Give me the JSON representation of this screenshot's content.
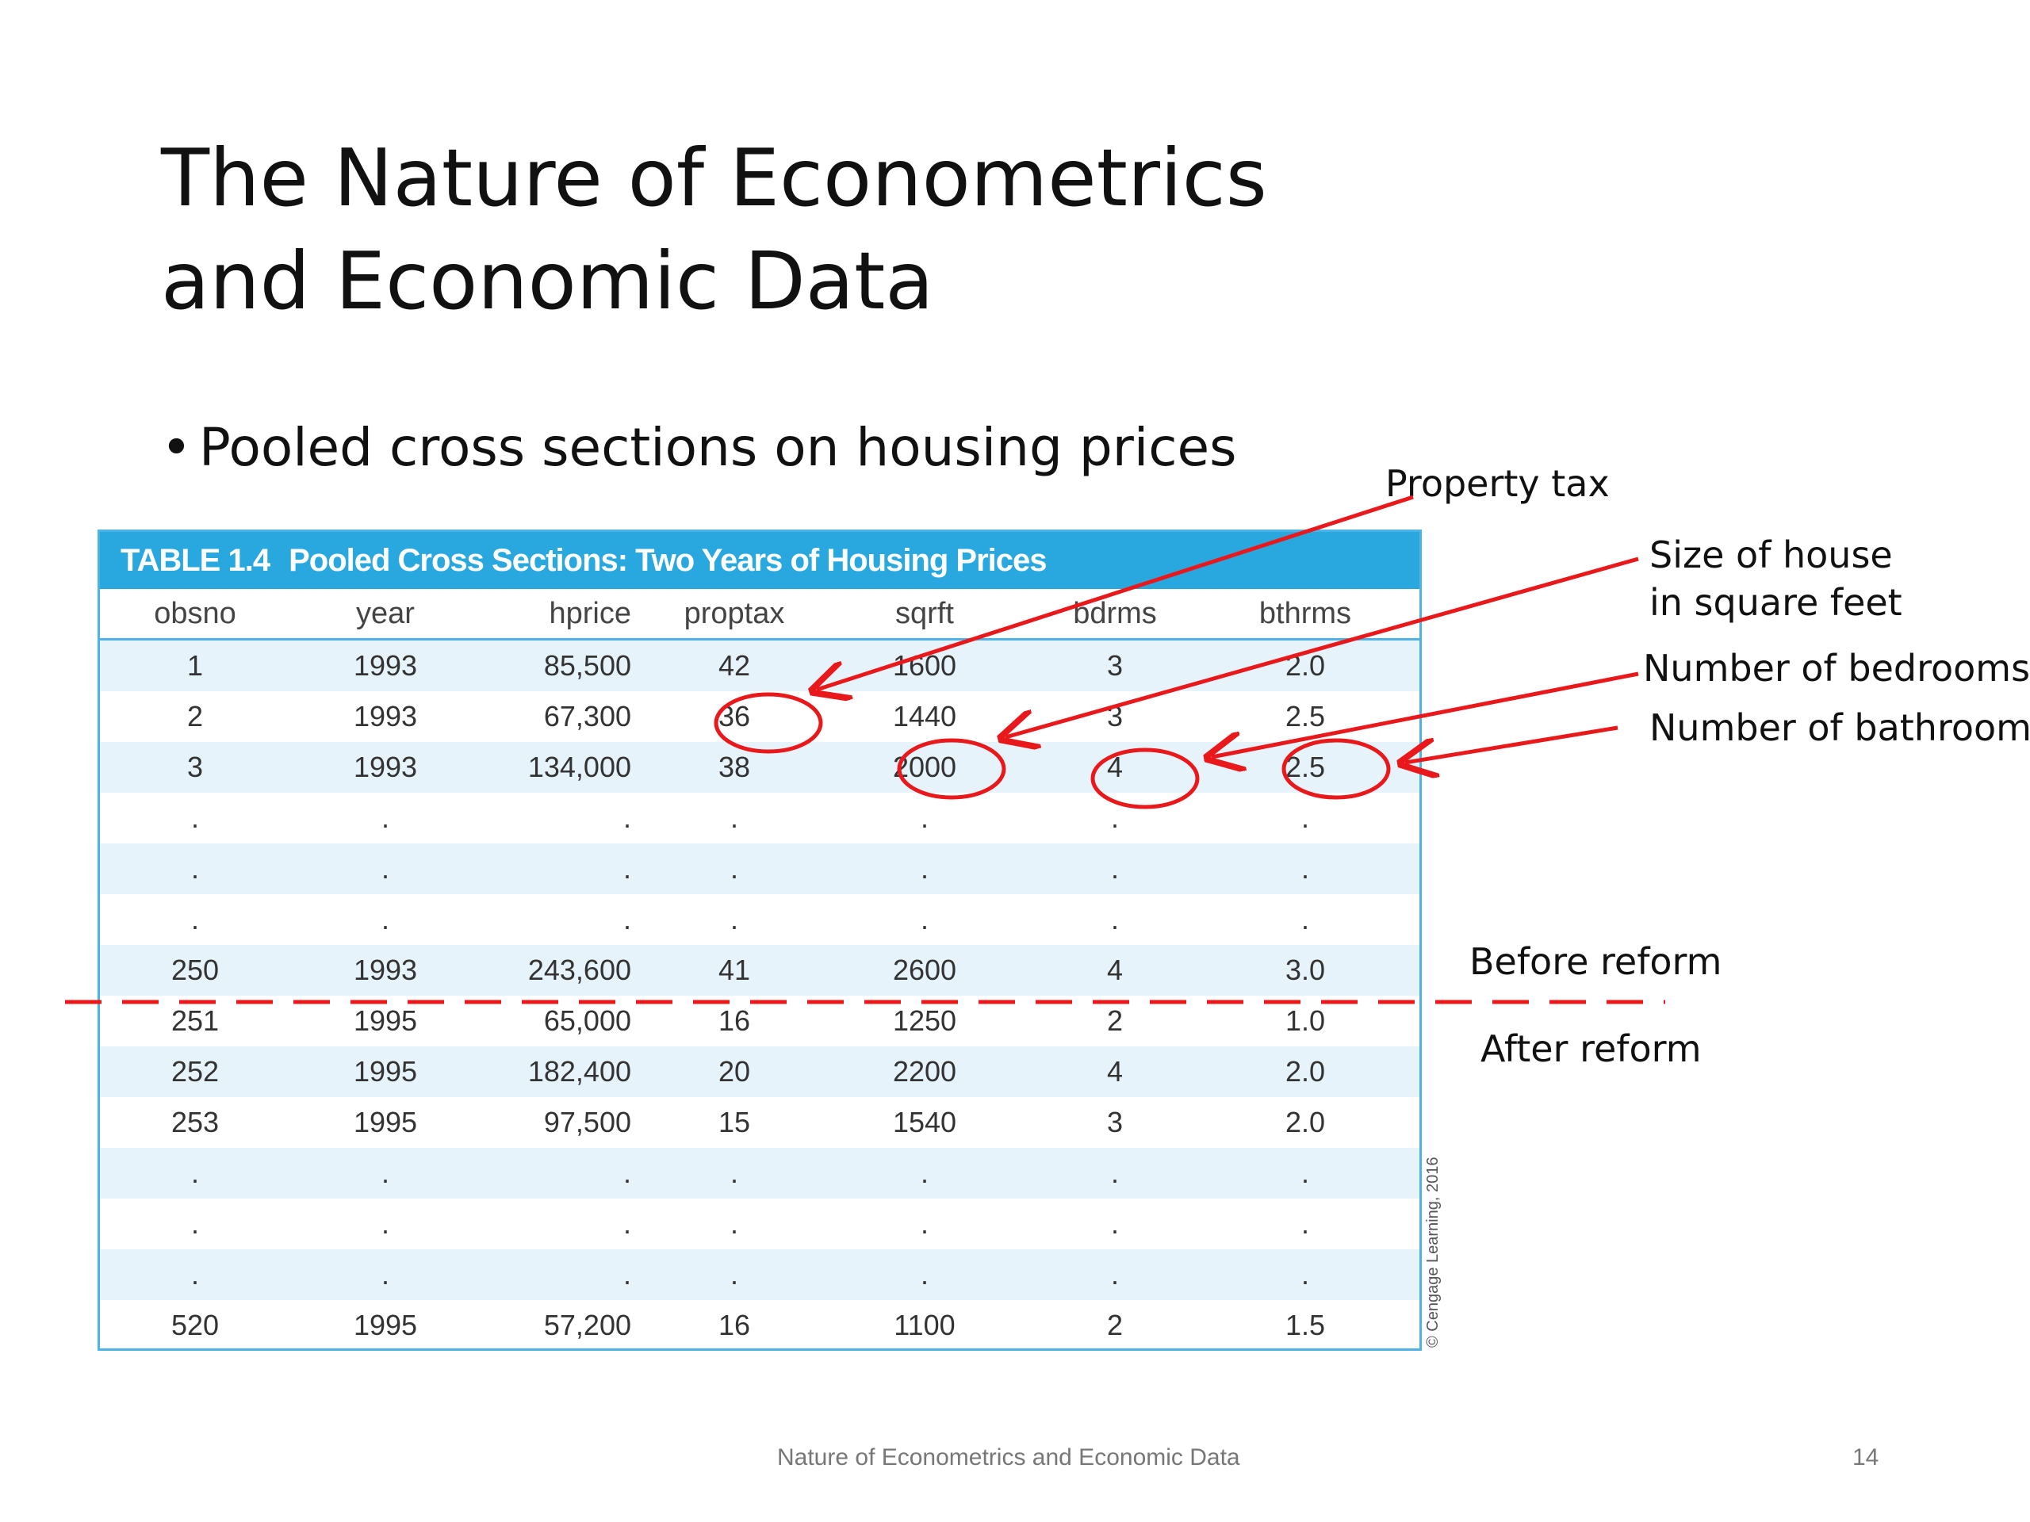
{
  "title": {
    "line1": "The Nature of Econometrics",
    "line2": "and Economic Data"
  },
  "bullet": {
    "symbol": "•",
    "text": "Pooled cross sections on housing prices"
  },
  "table": {
    "number": "TABLE 1.4",
    "caption": "Pooled Cross Sections: Two Years of Housing Prices",
    "columns": [
      "obsno",
      "year",
      "hprice",
      "proptax",
      "sqrft",
      "bdrms",
      "bthrms"
    ],
    "rows": [
      [
        "1",
        "1993",
        "85,500",
        "42",
        "1600",
        "3",
        "2.0"
      ],
      [
        "2",
        "1993",
        "67,300",
        "36",
        "1440",
        "3",
        "2.5"
      ],
      [
        "3",
        "1993",
        "134,000",
        "38",
        "2000",
        "4",
        "2.5"
      ],
      [
        ".",
        ".",
        ".",
        ".",
        ".",
        ".",
        "."
      ],
      [
        ".",
        ".",
        ".",
        ".",
        ".",
        ".",
        "."
      ],
      [
        ".",
        ".",
        ".",
        ".",
        ".",
        ".",
        "."
      ],
      [
        "250",
        "1993",
        "243,600",
        "41",
        "2600",
        "4",
        "3.0"
      ],
      [
        "251",
        "1995",
        "65,000",
        "16",
        "1250",
        "2",
        "1.0"
      ],
      [
        "252",
        "1995",
        "182,400",
        "20",
        "2200",
        "4",
        "2.0"
      ],
      [
        "253",
        "1995",
        "97,500",
        "15",
        "1540",
        "3",
        "2.0"
      ],
      [
        ".",
        ".",
        ".",
        ".",
        ".",
        ".",
        "."
      ],
      [
        ".",
        ".",
        ".",
        ".",
        ".",
        ".",
        "."
      ],
      [
        ".",
        ".",
        ".",
        ".",
        ".",
        ".",
        "."
      ],
      [
        "520",
        "1995",
        "57,200",
        "16",
        "1100",
        "2",
        "1.5"
      ]
    ],
    "copyright": "© Cengage Learning, 2016"
  },
  "annotations": {
    "property_tax": "Property tax",
    "size_line1": "Size of house",
    "size_line2": "in square feet",
    "bedrooms": "Number of bedrooms",
    "bathrooms": "Number of bathrooms",
    "before_reform": "Before reform",
    "after_reform": "After reform",
    "color": "#e8181b"
  },
  "footer": {
    "text": "Nature of Econometrics and Economic Data",
    "page": "14"
  }
}
